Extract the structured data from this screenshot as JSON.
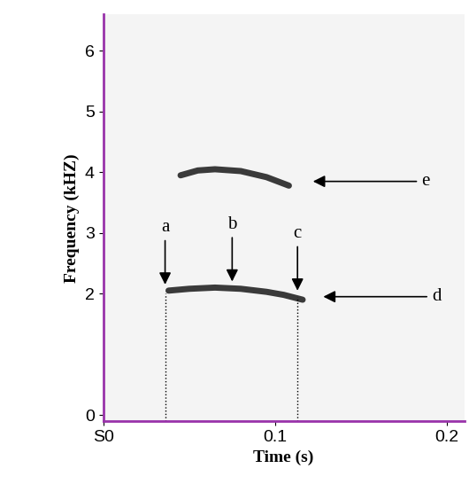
{
  "chart_data": {
    "type": "line",
    "x_label": "Time (s)",
    "y_label": "Frequency (kHZ)",
    "xlim": [
      0,
      0.21
    ],
    "ylim": [
      -0.1,
      6.6
    ],
    "xticks": [
      {
        "value": 0,
        "label": "S0"
      },
      0.1,
      0.2
    ],
    "yticks": [
      0,
      2,
      3,
      4,
      5,
      6
    ],
    "grid": false,
    "series": [
      {
        "color": "#3a3a3a",
        "line_style": "solid",
        "x": [
          0.038,
          0.05,
          0.065,
          0.08,
          0.095,
          0.105,
          0.116
        ],
        "values": [
          2.05,
          2.08,
          2.1,
          2.08,
          2.03,
          1.98,
          1.9
        ]
      },
      {
        "color": "#3a3a3a",
        "line_style": "solid",
        "x": [
          0.045,
          0.055,
          0.065,
          0.08,
          0.095,
          0.108
        ],
        "values": [
          3.95,
          4.03,
          4.05,
          4.02,
          3.92,
          3.78
        ]
      },
      {
        "color": "#000000",
        "line_style": "dotted",
        "x": [
          0.036,
          0.036
        ],
        "values": [
          -0.1,
          2.0
        ]
      },
      {
        "color": "#000000",
        "line_style": "dotted",
        "x": [
          0.113,
          0.113
        ],
        "values": [
          -0.1,
          1.95
        ]
      }
    ],
    "annotations": [
      {
        "text": "a",
        "x": 0.036,
        "y": 2.15,
        "arrow": "down"
      },
      {
        "text": "b",
        "x": 0.075,
        "y": 2.2,
        "arrow": "down"
      },
      {
        "text": "c",
        "x": 0.113,
        "y": 2.05,
        "arrow": "down"
      },
      {
        "text": "d",
        "x": 0.128,
        "y": 1.95,
        "arrow": "left"
      },
      {
        "text": "e",
        "x": 0.122,
        "y": 3.85,
        "arrow": "left"
      }
    ]
  }
}
